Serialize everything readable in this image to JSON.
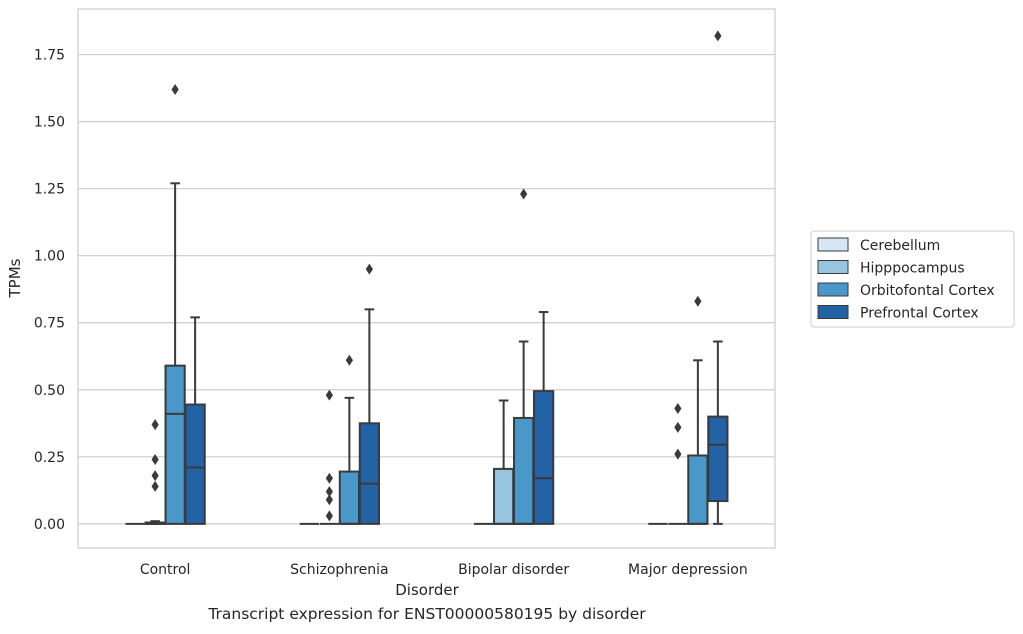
{
  "caption": "Transcript expression for ENST00000580195 by disorder",
  "chart_data": {
    "type": "box",
    "xlabel": "Disorder",
    "ylabel": "TPMs",
    "categories": [
      "Control",
      "Schizophrenia",
      "Bipolar disorder",
      "Major depression"
    ],
    "yticks": [
      "0.00",
      "0.25",
      "0.50",
      "0.75",
      "1.00",
      "1.25",
      "1.50",
      "1.75"
    ],
    "ylim": [
      -0.09,
      1.92
    ],
    "grid": true,
    "legend_position": "right",
    "series": [
      {
        "name": "Cerebellum",
        "color": "#d6e6f4",
        "boxes": [
          {
            "q1": 0.0,
            "median": 0.0,
            "q3": 0.0,
            "whisker_low": 0.0,
            "whisker_high": 0.0,
            "outliers": []
          },
          {
            "q1": 0.0,
            "median": 0.0,
            "q3": 0.0,
            "whisker_low": 0.0,
            "whisker_high": 0.0,
            "outliers": []
          },
          {
            "q1": 0.0,
            "median": 0.0,
            "q3": 0.0,
            "whisker_low": 0.0,
            "whisker_high": 0.0,
            "outliers": []
          },
          {
            "q1": 0.0,
            "median": 0.0,
            "q3": 0.0,
            "whisker_low": 0.0,
            "whisker_high": 0.0,
            "outliers": []
          }
        ]
      },
      {
        "name": "Hipppocampus",
        "color": "#97c4de",
        "boxes": [
          {
            "q1": 0.0,
            "median": 0.0,
            "q3": 0.005,
            "whisker_low": 0.0,
            "whisker_high": 0.01,
            "outliers": [
              0.14,
              0.18,
              0.24,
              0.37
            ]
          },
          {
            "q1": 0.0,
            "median": 0.0,
            "q3": 0.0,
            "whisker_low": 0.0,
            "whisker_high": 0.0,
            "outliers": [
              0.03,
              0.09,
              0.12,
              0.17,
              0.48
            ]
          },
          {
            "q1": 0.0,
            "median": 0.0,
            "q3": 0.205,
            "whisker_low": 0.0,
            "whisker_high": 0.46,
            "outliers": []
          },
          {
            "q1": 0.0,
            "median": 0.0,
            "q3": 0.0,
            "whisker_low": 0.0,
            "whisker_high": 0.0,
            "outliers": [
              0.26,
              0.36,
              0.43
            ]
          }
        ]
      },
      {
        "name": "Orbitofontal Cortex",
        "color": "#4a98c9",
        "boxes": [
          {
            "q1": 0.0,
            "median": 0.41,
            "q3": 0.59,
            "whisker_low": 0.0,
            "whisker_high": 1.27,
            "outliers": [
              1.62
            ]
          },
          {
            "q1": 0.0,
            "median": 0.0,
            "q3": 0.195,
            "whisker_low": 0.0,
            "whisker_high": 0.47,
            "outliers": [
              0.61
            ]
          },
          {
            "q1": 0.0,
            "median": 0.0,
            "q3": 0.395,
            "whisker_low": 0.0,
            "whisker_high": 0.68,
            "outliers": [
              1.23
            ]
          },
          {
            "q1": 0.0,
            "median": 0.0,
            "q3": 0.255,
            "whisker_low": 0.0,
            "whisker_high": 0.61,
            "outliers": [
              0.83
            ]
          }
        ]
      },
      {
        "name": "Prefrontal Cortex",
        "color": "#2363a5",
        "boxes": [
          {
            "q1": 0.0,
            "median": 0.21,
            "q3": 0.445,
            "whisker_low": 0.0,
            "whisker_high": 0.77,
            "outliers": []
          },
          {
            "q1": 0.0,
            "median": 0.15,
            "q3": 0.375,
            "whisker_low": 0.0,
            "whisker_high": 0.8,
            "outliers": [
              0.95
            ]
          },
          {
            "q1": 0.0,
            "median": 0.17,
            "q3": 0.495,
            "whisker_low": 0.0,
            "whisker_high": 0.79,
            "outliers": []
          },
          {
            "q1": 0.085,
            "median": 0.295,
            "q3": 0.4,
            "whisker_low": 0.0,
            "whisker_high": 0.68,
            "outliers": [
              1.82
            ]
          }
        ]
      }
    ]
  }
}
